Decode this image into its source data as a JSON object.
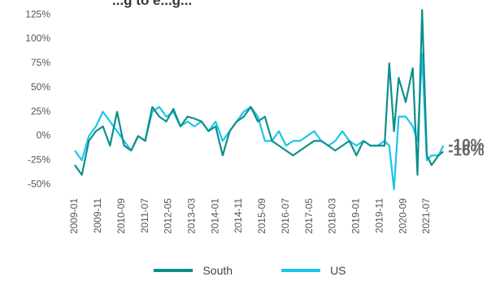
{
  "chart_data": {
    "type": "line",
    "title": "...g to e...g...",
    "xlabel": "",
    "ylabel": "",
    "ylim": [
      -60,
      130
    ],
    "y_ticks": [
      {
        "v": 125,
        "label": "125%"
      },
      {
        "v": 100,
        "label": "100%"
      },
      {
        "v": 75,
        "label": "75%"
      },
      {
        "v": 50,
        "label": "50%"
      },
      {
        "v": 25,
        "label": "25%"
      },
      {
        "v": 0,
        "label": "0%"
      },
      {
        "v": -25,
        "label": "-25%"
      },
      {
        "v": -50,
        "label": "-50%"
      }
    ],
    "x_ticks": [
      "2009-01",
      "2009-11",
      "2010-09",
      "2011-07",
      "2012-05",
      "2013-03",
      "2014-01",
      "2014-11",
      "2015-09",
      "2016-07",
      "2017-05",
      "2018-03",
      "2019-01",
      "2019-11",
      "2020-09",
      "2021-07"
    ],
    "x": [
      "2009-01",
      "2009-04",
      "2009-07",
      "2009-10",
      "2010-01",
      "2010-04",
      "2010-07",
      "2010-10",
      "2011-01",
      "2011-04",
      "2011-07",
      "2011-10",
      "2012-01",
      "2012-04",
      "2012-07",
      "2012-10",
      "2013-01",
      "2013-04",
      "2013-07",
      "2013-10",
      "2014-01",
      "2014-04",
      "2014-07",
      "2014-10",
      "2015-01",
      "2015-04",
      "2015-07",
      "2015-10",
      "2016-01",
      "2016-04",
      "2016-07",
      "2016-10",
      "2017-01",
      "2017-04",
      "2017-07",
      "2017-10",
      "2018-01",
      "2018-04",
      "2018-07",
      "2018-10",
      "2019-01",
      "2019-04",
      "2019-07",
      "2019-10",
      "2020-01",
      "2020-03",
      "2020-05",
      "2020-07",
      "2020-10",
      "2021-01",
      "2021-03",
      "2021-05",
      "2021-07",
      "2021-09",
      "2021-12",
      "2022-02"
    ],
    "series": [
      {
        "name": "South",
        "color": "#0d8f8a",
        "values": [
          -30,
          -40,
          -5,
          5,
          10,
          -10,
          25,
          -10,
          -15,
          0,
          -5,
          30,
          20,
          15,
          28,
          10,
          20,
          18,
          15,
          5,
          10,
          -20,
          5,
          15,
          20,
          30,
          15,
          20,
          -5,
          -10,
          -15,
          -20,
          -15,
          -10,
          -5,
          -5,
          -10,
          -15,
          -10,
          -5,
          -20,
          -5,
          -10,
          -10,
          -10,
          75,
          5,
          60,
          35,
          70,
          -40,
          130,
          -20,
          -30,
          -20,
          -16
        ]
      },
      {
        "name": "US",
        "color": "#19c6ea",
        "values": [
          -15,
          -25,
          0,
          10,
          25,
          15,
          5,
          -5,
          -15,
          0,
          -5,
          25,
          30,
          20,
          25,
          10,
          15,
          10,
          15,
          5,
          15,
          -5,
          5,
          15,
          25,
          30,
          20,
          -5,
          -5,
          5,
          -10,
          -5,
          -5,
          0,
          5,
          -5,
          -10,
          -5,
          5,
          -5,
          -10,
          -5,
          -10,
          -10,
          -5,
          -10,
          -55,
          20,
          20,
          10,
          -5,
          85,
          -25,
          -20,
          -20,
          -10
        ]
      }
    ],
    "end_labels": [
      {
        "series": "South",
        "text": "-16%"
      },
      {
        "series": "US",
        "text": "-10%"
      }
    ],
    "legend_position": "bottom",
    "grid": false
  }
}
